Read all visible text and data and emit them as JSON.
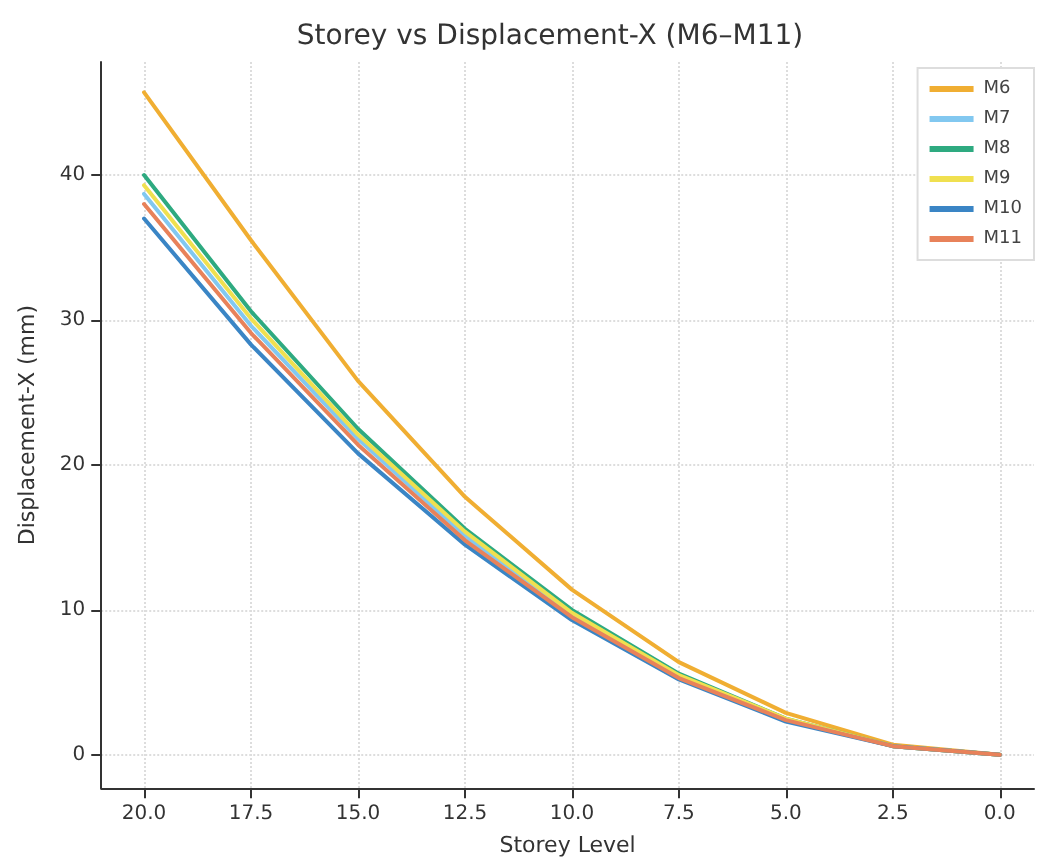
{
  "chart_data": {
    "type": "line",
    "title": "Storey vs Displacement-X (M6–M11)",
    "xlabel": "Storey Level",
    "ylabel": "Displacement-X (mm)",
    "x": [
      20,
      17.5,
      15,
      12.5,
      10,
      7.5,
      5,
      2.5,
      0
    ],
    "series": [
      {
        "name": "M6",
        "color": "#f0ae32",
        "values": [
          45.7,
          35.5,
          25.8,
          17.8,
          11.4,
          6.4,
          2.9,
          0.7,
          0
        ]
      },
      {
        "name": "M7",
        "color": "#82c8f0",
        "values": [
          38.7,
          29.6,
          21.8,
          15.1,
          9.7,
          5.4,
          2.4,
          0.6,
          0
        ]
      },
      {
        "name": "M8",
        "color": "#2eaa80",
        "values": [
          40.0,
          30.6,
          22.5,
          15.6,
          10.0,
          5.6,
          2.5,
          0.6,
          0
        ]
      },
      {
        "name": "M9",
        "color": "#f0e050",
        "values": [
          39.3,
          30.1,
          22.1,
          15.4,
          9.8,
          5.5,
          2.5,
          0.6,
          0
        ]
      },
      {
        "name": "M10",
        "color": "#3a85c5",
        "values": [
          37.0,
          28.3,
          20.8,
          14.5,
          9.3,
          5.2,
          2.3,
          0.6,
          0
        ]
      },
      {
        "name": "M11",
        "color": "#e8825a",
        "values": [
          38.0,
          29.1,
          21.4,
          14.8,
          9.5,
          5.3,
          2.4,
          0.6,
          0
        ]
      }
    ],
    "xlim": [
      21,
      -0.8
    ],
    "xticks": [
      {
        "value": 20,
        "label": "20.0"
      },
      {
        "value": 17.5,
        "label": "17.5"
      },
      {
        "value": 15,
        "label": "15.0"
      },
      {
        "value": 12.5,
        "label": "12.5"
      },
      {
        "value": 10,
        "label": "10.0"
      },
      {
        "value": 7.5,
        "label": "7.5"
      },
      {
        "value": 5,
        "label": "5.0"
      },
      {
        "value": 2.5,
        "label": "2.5"
      },
      {
        "value": 0,
        "label": "0.0"
      }
    ],
    "ylim": [
      -2.3,
      47.8
    ],
    "yticks": [
      0,
      10,
      20,
      30,
      40
    ],
    "grid": true,
    "legend": "top right",
    "marker": "none",
    "line_style": "solid"
  }
}
